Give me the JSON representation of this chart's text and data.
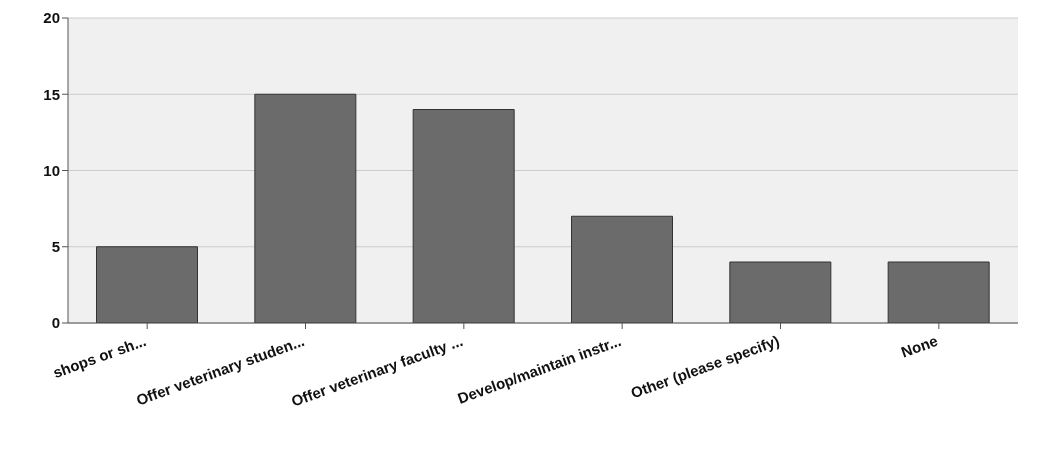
{
  "chart_data": {
    "type": "bar",
    "categories": [
      "shops or sh...",
      "Offer veterinary studen...",
      "Offer veterinary faculty ...",
      "Develop/maintain instr...",
      "Other (please specify)",
      "None"
    ],
    "values": [
      5,
      15,
      14,
      7,
      4,
      4
    ],
    "color": "#6b6b6b",
    "ylim": [
      0,
      20
    ],
    "yticks": [
      0,
      5,
      10,
      15,
      20
    ],
    "grid": "y"
  }
}
